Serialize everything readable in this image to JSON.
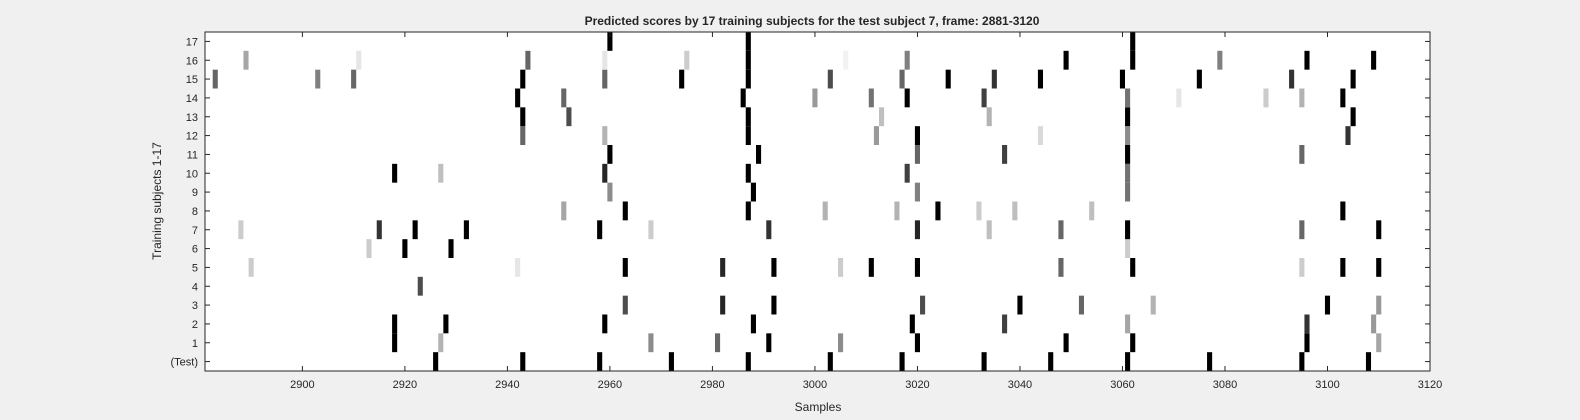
{
  "chart_data": {
    "type": "heatmap",
    "title": "Predicted scores by 17 training subjects for the test subject 7, frame: 2881-3120",
    "xlabel": "Samples",
    "ylabel": "Training subjects 1-17",
    "xlim": [
      2881,
      3120
    ],
    "xticks": [
      2900,
      2920,
      2940,
      2960,
      2980,
      3000,
      3020,
      3040,
      3060,
      3080,
      3100,
      3120
    ],
    "rows": [
      "(Test)",
      "1",
      "2",
      "3",
      "4",
      "5",
      "6",
      "7",
      "8",
      "9",
      "10",
      "11",
      "12",
      "13",
      "14",
      "15",
      "16",
      "17"
    ],
    "grid": false,
    "colormap": "gray (white = 0, black = 1)",
    "background_color": "#f0f0f0",
    "plot_color": "#ffffff",
    "marks": [
      {
        "row": "(Test)",
        "points": [
          [
            2926,
            1
          ],
          [
            2943,
            1
          ],
          [
            2958,
            1
          ],
          [
            2972,
            1
          ],
          [
            2987,
            1
          ],
          [
            3003,
            1
          ],
          [
            3017,
            1
          ],
          [
            3033,
            1
          ],
          [
            3046,
            1
          ],
          [
            3061,
            1
          ],
          [
            3077,
            1
          ],
          [
            3095,
            1
          ],
          [
            3108,
            1
          ]
        ]
      },
      {
        "row": "1",
        "points": [
          [
            2918,
            1
          ],
          [
            2927,
            0.3
          ],
          [
            2968,
            0.45
          ],
          [
            2981,
            0.6
          ],
          [
            2991,
            1
          ],
          [
            3005,
            0.45
          ],
          [
            3020,
            1
          ],
          [
            3049,
            1
          ],
          [
            3062,
            1
          ],
          [
            3096,
            1
          ],
          [
            3110,
            0.35
          ]
        ]
      },
      {
        "row": "2",
        "points": [
          [
            2918,
            1
          ],
          [
            2928,
            1
          ],
          [
            2959,
            1
          ],
          [
            2988,
            1
          ],
          [
            3019,
            1
          ],
          [
            3037,
            0.75
          ],
          [
            3061,
            0.35
          ],
          [
            3096,
            0.8
          ],
          [
            3109,
            0.4
          ]
        ]
      },
      {
        "row": "3",
        "points": [
          [
            2963,
            0.7
          ],
          [
            2982,
            0.85
          ],
          [
            2992,
            1
          ],
          [
            3021,
            0.7
          ],
          [
            3040,
            1
          ],
          [
            3052,
            0.6
          ],
          [
            3066,
            0.3
          ],
          [
            3100,
            1
          ],
          [
            3110,
            0.4
          ]
        ]
      },
      {
        "row": "4",
        "points": [
          [
            2923,
            0.7
          ]
        ]
      },
      {
        "row": "5",
        "points": [
          [
            2890,
            0.2
          ],
          [
            2942,
            0.1
          ],
          [
            2963,
            1
          ],
          [
            2982,
            0.85
          ],
          [
            2992,
            1
          ],
          [
            3005,
            0.2
          ],
          [
            3011,
            1
          ],
          [
            3020,
            1
          ],
          [
            3048,
            0.6
          ],
          [
            3062,
            1
          ],
          [
            3095,
            0.2
          ],
          [
            3103,
            1
          ],
          [
            3110,
            1
          ]
        ]
      },
      {
        "row": "6",
        "points": [
          [
            2913,
            0.2
          ],
          [
            2920,
            1
          ],
          [
            2929,
            1
          ],
          [
            3061,
            0.2
          ]
        ]
      },
      {
        "row": "7",
        "points": [
          [
            2888,
            0.2
          ],
          [
            2915,
            0.8
          ],
          [
            2922,
            1
          ],
          [
            2932,
            1
          ],
          [
            2958,
            1
          ],
          [
            2968,
            0.2
          ],
          [
            2991,
            0.8
          ],
          [
            3020,
            0.85
          ],
          [
            3034,
            0.25
          ],
          [
            3048,
            0.6
          ],
          [
            3061,
            1
          ],
          [
            3095,
            0.6
          ],
          [
            3110,
            1
          ]
        ]
      },
      {
        "row": "8",
        "points": [
          [
            2951,
            0.35
          ],
          [
            2963,
            1
          ],
          [
            2987,
            1
          ],
          [
            3002,
            0.3
          ],
          [
            3016,
            0.3
          ],
          [
            3024,
            1
          ],
          [
            3032,
            0.2
          ],
          [
            3039,
            0.25
          ],
          [
            3054,
            0.25
          ],
          [
            3103,
            1
          ]
        ]
      },
      {
        "row": "9",
        "points": [
          [
            2960,
            0.45
          ],
          [
            2988,
            1
          ],
          [
            3020,
            0.5
          ],
          [
            3061,
            0.55
          ]
        ]
      },
      {
        "row": "10",
        "points": [
          [
            2918,
            1
          ],
          [
            2927,
            0.25
          ],
          [
            2959,
            0.85
          ],
          [
            2987,
            1
          ],
          [
            3018,
            0.75
          ],
          [
            3061,
            0.55
          ]
        ]
      },
      {
        "row": "11",
        "points": [
          [
            2960,
            1
          ],
          [
            2989,
            1
          ],
          [
            3020,
            0.6
          ],
          [
            3037,
            0.75
          ],
          [
            3061,
            1
          ],
          [
            3095,
            0.6
          ]
        ]
      },
      {
        "row": "12",
        "points": [
          [
            2943,
            0.6
          ],
          [
            2959,
            0.3
          ],
          [
            2987,
            1
          ],
          [
            3012,
            0.4
          ],
          [
            3020,
            1
          ],
          [
            3044,
            0.15
          ],
          [
            3061,
            0.45
          ],
          [
            3104,
            0.8
          ]
        ]
      },
      {
        "row": "13",
        "points": [
          [
            2943,
            1
          ],
          [
            2952,
            0.7
          ],
          [
            2987,
            1
          ],
          [
            3013,
            0.25
          ],
          [
            3034,
            0.3
          ],
          [
            3061,
            1
          ],
          [
            3105,
            1
          ]
        ]
      },
      {
        "row": "14",
        "points": [
          [
            2942,
            1
          ],
          [
            2951,
            0.6
          ],
          [
            2986,
            1
          ],
          [
            3000,
            0.4
          ],
          [
            3011,
            0.55
          ],
          [
            3018,
            1
          ],
          [
            3033,
            0.75
          ],
          [
            3061,
            0.55
          ],
          [
            3071,
            0.1
          ],
          [
            3088,
            0.2
          ],
          [
            3095,
            0.3
          ],
          [
            3103,
            1
          ]
        ]
      },
      {
        "row": "15",
        "points": [
          [
            2883,
            0.6
          ],
          [
            2903,
            0.5
          ],
          [
            2910,
            0.6
          ],
          [
            2943,
            1
          ],
          [
            2959,
            0.6
          ],
          [
            2974,
            1
          ],
          [
            2987,
            1
          ],
          [
            3003,
            0.7
          ],
          [
            3017,
            0.6
          ],
          [
            3026,
            1
          ],
          [
            3035,
            0.8
          ],
          [
            3044,
            1
          ],
          [
            3060,
            1
          ],
          [
            3075,
            1
          ],
          [
            3093,
            0.8
          ],
          [
            3105,
            1
          ]
        ]
      },
      {
        "row": "16",
        "points": [
          [
            2889,
            0.35
          ],
          [
            2911,
            0.1
          ],
          [
            2944,
            0.6
          ],
          [
            2959,
            0.1
          ],
          [
            2975,
            0.2
          ],
          [
            2987,
            1
          ],
          [
            3006,
            0.05
          ],
          [
            3018,
            0.5
          ],
          [
            3049,
            1
          ],
          [
            3062,
            1
          ],
          [
            3079,
            0.5
          ],
          [
            3096,
            1
          ],
          [
            3109,
            1
          ]
        ]
      },
      {
        "row": "17",
        "points": [
          [
            2960,
            1
          ],
          [
            2987,
            1
          ],
          [
            3062,
            1
          ]
        ]
      }
    ]
  }
}
